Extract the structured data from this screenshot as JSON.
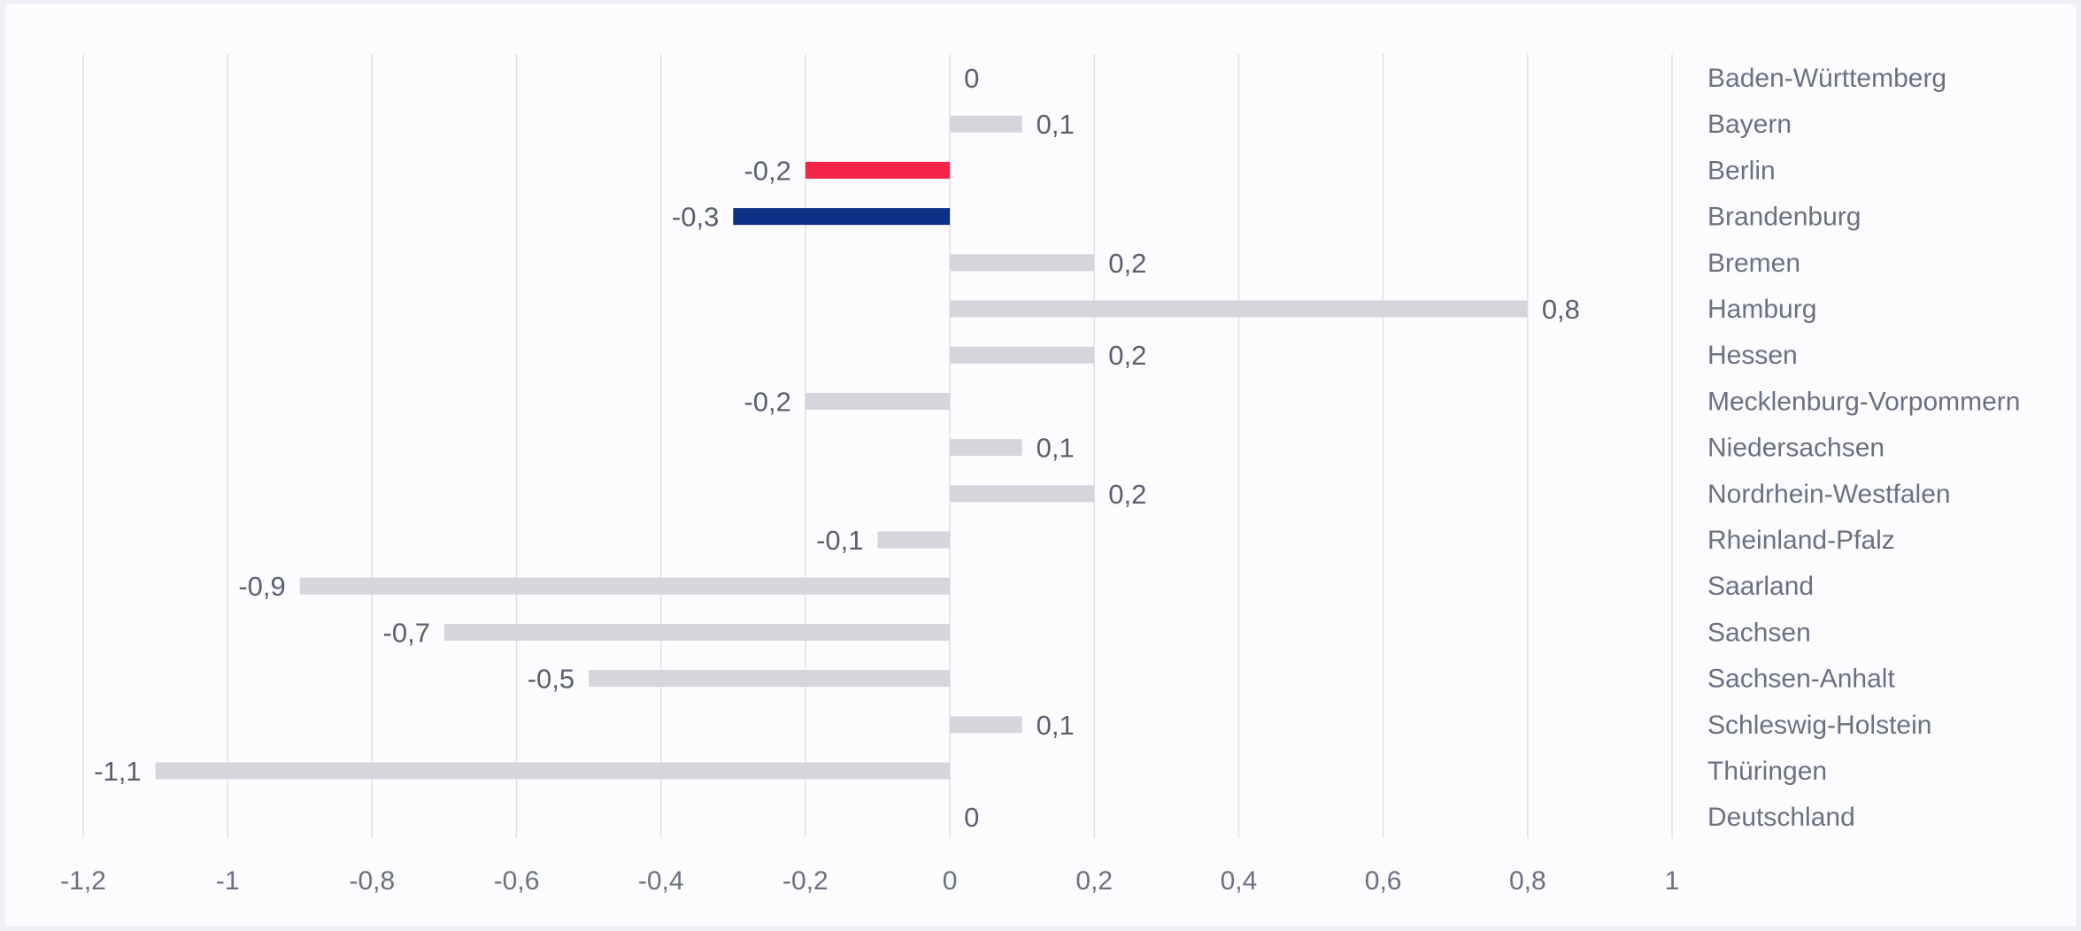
{
  "chart_data": {
    "type": "bar",
    "orientation": "horizontal",
    "categories": [
      "Baden-Württemberg",
      "Bayern",
      "Berlin",
      "Brandenburg",
      "Bremen",
      "Hamburg",
      "Hessen",
      "Mecklenburg-Vorpommern",
      "Niedersachsen",
      "Nordrhein-Westfalen",
      "Rheinland-Pfalz",
      "Saarland",
      "Sachsen",
      "Sachsen-Anhalt",
      "Schleswig-Holstein",
      "Thüringen",
      "Deutschland"
    ],
    "values": [
      0,
      0.1,
      -0.2,
      -0.3,
      0.2,
      0.8,
      0.2,
      -0.2,
      0.1,
      0.2,
      -0.1,
      -0.9,
      -0.7,
      -0.5,
      0.1,
      -1.1,
      0
    ],
    "value_labels": [
      "0",
      "0,1",
      "-0,2",
      "-0,3",
      "0,2",
      "0,8",
      "0,2",
      "-0,2",
      "0,1",
      "0,2",
      "-0,1",
      "-0,9",
      "-0,7",
      "-0,5",
      "0,1",
      "-1,1",
      "0"
    ],
    "highlight": {
      "Berlin": "#f5234a",
      "Brandenburg": "#0e2f86"
    },
    "default_color": "#d4d6dc",
    "xlim": [
      -1.2,
      1
    ],
    "x_ticks": [
      -1.2,
      -1,
      -0.8,
      -0.6,
      -0.4,
      -0.2,
      0,
      0.2,
      0.4,
      0.6,
      0.8,
      1
    ],
    "x_tick_labels": [
      "-1,2",
      "-1",
      "-0,8",
      "-0,6",
      "-0,4",
      "-0,2",
      "0",
      "0,2",
      "0,4",
      "0,6",
      "0,8",
      "1"
    ],
    "grid": true,
    "category_labels_position": "right",
    "title": "",
    "xlabel": "",
    "ylabel": ""
  }
}
